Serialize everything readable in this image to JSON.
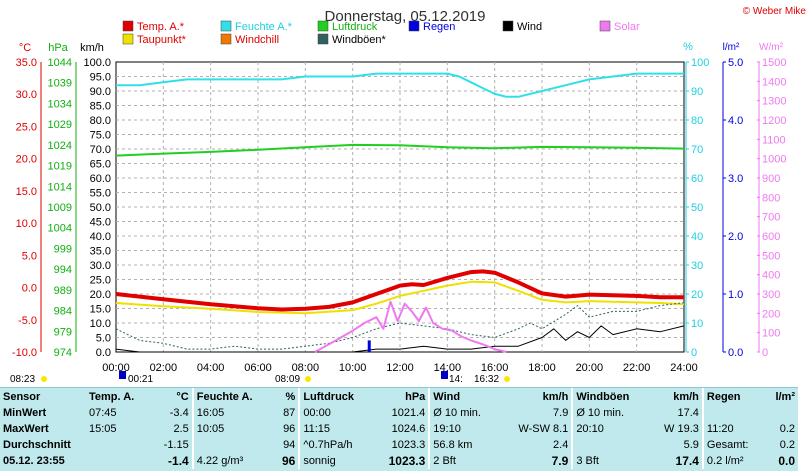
{
  "title": "Donnerstag, 05.12.2019",
  "credit": "© Weber Mike",
  "axis_units": {
    "temp": "°C",
    "press": "hPa",
    "wind": "km/h",
    "hum": "%",
    "rain": "l/m²",
    "solar": "W/m²"
  },
  "legend": [
    {
      "label": "Temp. A.*",
      "color": "#e00000",
      "text_color": "#e00000"
    },
    {
      "label": "Taupunkt*",
      "color": "#f0e000",
      "text_color": "#e00000"
    },
    {
      "label": "Feuchte A.*",
      "color": "#30e0e8",
      "text_color": "#20d0e0"
    },
    {
      "label": "Windchill",
      "color": "#f07800",
      "text_color": "#e00000"
    },
    {
      "label": "Luftdruck",
      "color": "#20d020",
      "text_color": "#10b010"
    },
    {
      "label": "Windböen*",
      "color": "#306060",
      "text_color": "#000000"
    },
    {
      "label": "Regen",
      "color": "#0000e0",
      "text_color": "#0000e0"
    },
    {
      "label": "Wind",
      "color": "#000000",
      "text_color": "#000000"
    },
    {
      "label": "Solar",
      "color": "#f078f0",
      "text_color": "#f078f0"
    }
  ],
  "markers": {
    "sunrise": "08:23",
    "sunset": "16:32",
    "moon_set": "00:21",
    "moon_rise": "08:09",
    "moon_mark": "14:"
  },
  "chart_data": {
    "type": "line",
    "x_ticks": [
      "00:00",
      "02:00",
      "04:00",
      "06:00",
      "08:00",
      "10:00",
      "12:00",
      "14:00",
      "16:00",
      "18:00",
      "20:00",
      "22:00",
      "24:00"
    ],
    "temp_axis": {
      "ticks": [
        "35.0",
        "30.0",
        "25.0",
        "20.0",
        "15.0",
        "10.0",
        "5.0",
        "0.0",
        "-5.0",
        "-10.0"
      ],
      "range": [
        -10,
        35
      ]
    },
    "press_axis": {
      "ticks": [
        "1044",
        "1039",
        "1034",
        "1029",
        "1024",
        "1019",
        "1014",
        "1009",
        "1004",
        "999",
        "994",
        "989",
        "984",
        "979",
        "974"
      ],
      "range": [
        974,
        1044
      ]
    },
    "wind_axis": {
      "ticks": [
        "100.0",
        "95.0",
        "90.0",
        "85.0",
        "80.0",
        "75.0",
        "70.0",
        "65.0",
        "60.0",
        "55.0",
        "50.0",
        "45.0",
        "40.0",
        "35.0",
        "30.0",
        "25.0",
        "20.0",
        "15.0",
        "10.0",
        "5.0",
        "0.0"
      ],
      "range": [
        0,
        100
      ]
    },
    "hum_axis": {
      "ticks": [
        "100",
        "90",
        "80",
        "70",
        "60",
        "50",
        "40",
        "30",
        "20",
        "10",
        "0"
      ],
      "range": [
        0,
        100
      ]
    },
    "rain_axis": {
      "ticks": [
        "5.0",
        "4.0",
        "3.0",
        "2.0",
        "1.0",
        "0.0"
      ],
      "range": [
        0,
        5
      ]
    },
    "solar_axis": {
      "ticks": [
        "1500",
        "1400",
        "1300",
        "1200",
        "1100",
        "1000",
        "900",
        "800",
        "700",
        "600",
        "500",
        "400",
        "300",
        "200",
        "100",
        "0"
      ],
      "range": [
        0,
        1500
      ]
    },
    "series": [
      {
        "name": "Temp. A.*",
        "axis": "temp",
        "color": "#e00000",
        "width": 4,
        "x": [
          0,
          1,
          2,
          3,
          4,
          5,
          6,
          7,
          8,
          9,
          10,
          11,
          12,
          12.5,
          13,
          14,
          15,
          15.5,
          16,
          17,
          18,
          19,
          20,
          21,
          22,
          23,
          24
        ],
        "y": [
          -1.0,
          -1.4,
          -1.8,
          -2.2,
          -2.6,
          -2.9,
          -3.2,
          -3.4,
          -3.3,
          -3.0,
          -2.3,
          -1.0,
          0.3,
          0.5,
          0.4,
          1.5,
          2.4,
          2.5,
          2.3,
          0.8,
          -0.9,
          -1.4,
          -1.1,
          -1.2,
          -1.3,
          -1.5,
          -1.5
        ]
      },
      {
        "name": "Taupunkt*",
        "axis": "temp",
        "color": "#f0e000",
        "width": 2,
        "x": [
          0,
          2,
          4,
          6,
          8,
          10,
          11,
          12,
          13,
          14,
          15,
          16,
          17,
          18,
          19,
          20,
          21,
          22,
          23,
          24
        ],
        "y": [
          -2.4,
          -2.9,
          -3.3,
          -3.8,
          -4.0,
          -3.5,
          -2.5,
          -1.3,
          -0.5,
          0.3,
          0.9,
          0.8,
          -0.5,
          -1.9,
          -2.3,
          -2.1,
          -2.2,
          -2.3,
          -2.4,
          -2.6
        ]
      },
      {
        "name": "Feuchte A.*",
        "axis": "hum",
        "color": "#30e0e8",
        "width": 2,
        "x": [
          0,
          1,
          2,
          3,
          4,
          5,
          6,
          7,
          8,
          9,
          10,
          11,
          12,
          13,
          14,
          14.5,
          15,
          15.5,
          16,
          16.5,
          17,
          18,
          19,
          20,
          21,
          22,
          23,
          24
        ],
        "y": [
          92,
          92,
          93,
          94,
          94,
          94,
          94,
          94,
          95,
          95,
          95,
          96,
          96,
          96,
          96,
          95,
          93,
          91,
          89,
          88,
          88,
          90,
          92,
          94,
          95,
          96,
          96,
          96
        ]
      },
      {
        "name": "Luftdruck",
        "axis": "press",
        "color": "#20d020",
        "width": 2,
        "x": [
          0,
          2,
          4,
          6,
          8,
          10,
          12,
          14,
          16,
          18,
          20,
          22,
          24
        ],
        "y": [
          1021.4,
          1021.9,
          1022.3,
          1022.8,
          1023.4,
          1024.0,
          1023.9,
          1023.4,
          1023.2,
          1023.5,
          1023.4,
          1023.3,
          1023.1
        ]
      },
      {
        "name": "Windböen*",
        "axis": "wind",
        "color": "#306060",
        "width": 1,
        "dash": "2,2",
        "x": [
          0,
          0.5,
          1,
          2,
          3,
          4,
          5,
          6,
          7,
          8,
          9,
          10,
          11,
          12,
          13,
          14,
          15,
          16,
          17,
          17.5,
          18,
          19,
          19.5,
          20,
          21,
          22,
          23,
          24
        ],
        "y": [
          8,
          6,
          4,
          3,
          1,
          1,
          2,
          1,
          1,
          2,
          3,
          5,
          8,
          10,
          9,
          8,
          6,
          5,
          8,
          10,
          8,
          13,
          16,
          12,
          14,
          14,
          16,
          17
        ]
      },
      {
        "name": "Wind",
        "axis": "wind",
        "color": "#000000",
        "width": 1,
        "x": [
          0,
          1,
          2,
          3,
          4,
          5,
          6,
          7,
          8,
          9,
          10,
          11,
          12,
          13,
          14,
          15,
          16,
          17,
          18,
          18.5,
          19,
          19.5,
          20,
          20.5,
          21,
          22,
          23,
          24
        ],
        "y": [
          1,
          0,
          0,
          0,
          0,
          0,
          0,
          0,
          0,
          0,
          0,
          1,
          1,
          2,
          1,
          1,
          2,
          2,
          5,
          8,
          4,
          7,
          5,
          9,
          6,
          8,
          7,
          9
        ]
      },
      {
        "name": "Solar",
        "axis": "solar",
        "color": "#f078f0",
        "width": 2,
        "x": [
          8.4,
          9,
          10,
          10.5,
          11,
          11.3,
          11.6,
          11.9,
          12.2,
          12.5,
          12.8,
          13.1,
          13.4,
          13.8,
          14.2,
          14.6,
          15,
          15.5,
          16,
          16.5
        ],
        "y": [
          0,
          40,
          110,
          150,
          180,
          120,
          260,
          160,
          250,
          210,
          160,
          230,
          150,
          120,
          110,
          80,
          60,
          40,
          15,
          0
        ]
      }
    ],
    "rain_bars": [
      {
        "x": 10.7,
        "y": 0.2
      }
    ]
  },
  "stats": {
    "headers": [
      "Sensor",
      "Temp. A.",
      "°C",
      "Feuchte A.",
      "%",
      "Luftdruck",
      "hPa",
      "Wind",
      "km/h",
      "Windböen",
      "km/h",
      "Regen",
      "l/m²"
    ],
    "rows": [
      {
        "label": "MinWert",
        "cells": [
          "07:45",
          "-3.4",
          "16:05",
          "87",
          "00:00",
          "1021.4",
          "Ø 10 min.",
          "7.9",
          "Ø 10 min.",
          "17.4",
          "",
          ""
        ]
      },
      {
        "label": "MaxWert",
        "cells": [
          "15:05",
          "2.5",
          "10:05",
          "96",
          "11:15",
          "1024.6",
          "19:10",
          "W-SW 8.1",
          "20:10",
          "W 19.3",
          "11:20",
          "0.2"
        ]
      },
      {
        "label": "Durchschnitt",
        "cells": [
          "",
          "-1.15",
          "",
          "94",
          "^0.7hPa/h",
          "1023.3",
          "56.8 km",
          "2.4",
          "",
          "5.9",
          "Gesamt:",
          "0.2"
        ]
      },
      {
        "label": "05.12. 23:55",
        "cells": [
          "",
          "-1.4",
          "4.22 g/m³",
          "96",
          "sonnig",
          "1023.3",
          "2 Bft",
          "7.9",
          "3 Bft",
          "17.4",
          "0.2 l/m²",
          "0.0"
        ]
      }
    ]
  }
}
